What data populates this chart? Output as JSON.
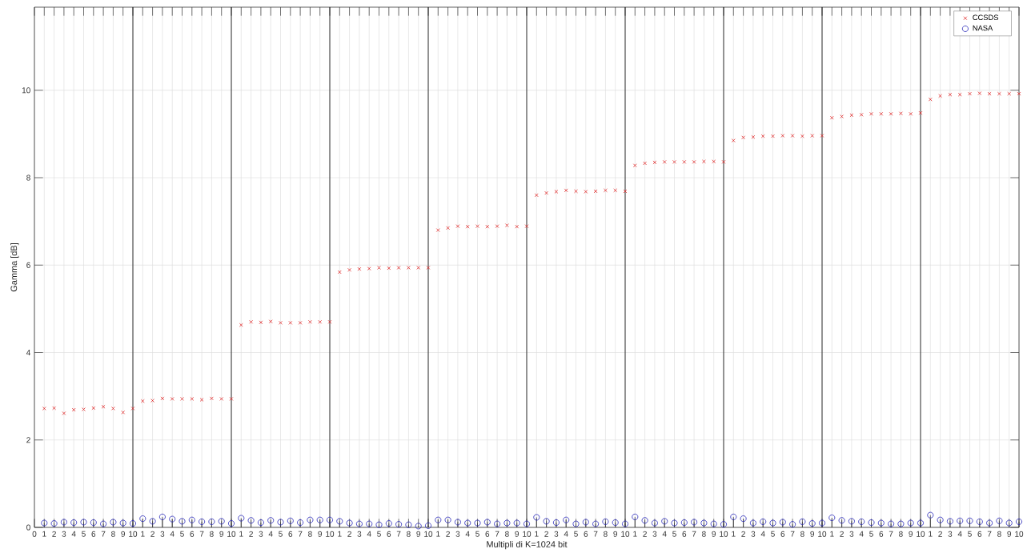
{
  "chart_data": {
    "type": "scatter",
    "xlabel": "Multipli di K=1024 bit",
    "ylabel": "Gamma [dB]",
    "ylim": [
      0,
      11.9
    ],
    "yticks": [
      0,
      2,
      4,
      6,
      8,
      10
    ],
    "grid": true,
    "legend": "top right",
    "categories": [
      "0",
      "1",
      "2",
      "3",
      "4",
      "5",
      "6",
      "7",
      "8",
      "9",
      "10",
      "1",
      "2",
      "3",
      "4",
      "5",
      "6",
      "7",
      "8",
      "9",
      "10",
      "1",
      "2",
      "3",
      "4",
      "5",
      "6",
      "7",
      "8",
      "9",
      "10",
      "1",
      "2",
      "3",
      "4",
      "5",
      "6",
      "7",
      "8",
      "9",
      "10",
      "1",
      "2",
      "3",
      "4",
      "5",
      "6",
      "7",
      "8",
      "9",
      "10",
      "1",
      "2",
      "3",
      "4",
      "5",
      "6",
      "7",
      "8",
      "9",
      "10",
      "1",
      "2",
      "3",
      "4",
      "5",
      "6",
      "7",
      "8",
      "9",
      "10",
      "1",
      "2",
      "3",
      "4",
      "5",
      "6",
      "7",
      "8",
      "9",
      "10",
      "1",
      "2",
      "3",
      "4",
      "5",
      "6",
      "7",
      "8",
      "9",
      "10",
      "1",
      "2",
      "3",
      "4",
      "5",
      "6",
      "7",
      "8",
      "9",
      "10"
    ],
    "series": [
      {
        "name": "CCSDS",
        "marker": "cross",
        "color": "#e02424",
        "values": [
          null,
          2.72,
          2.73,
          2.61,
          2.69,
          2.7,
          2.73,
          2.76,
          2.72,
          2.63,
          2.72,
          2.89,
          2.9,
          2.95,
          2.94,
          2.94,
          2.94,
          2.92,
          2.95,
          2.94,
          2.94,
          4.63,
          4.7,
          4.69,
          4.71,
          4.68,
          4.68,
          4.68,
          4.7,
          4.7,
          4.7,
          5.84,
          5.89,
          5.91,
          5.92,
          5.94,
          5.93,
          5.94,
          5.94,
          5.94,
          5.94,
          6.8,
          6.85,
          6.89,
          6.88,
          6.89,
          6.88,
          6.89,
          6.91,
          6.88,
          6.89,
          7.6,
          7.65,
          7.68,
          7.71,
          7.69,
          7.68,
          7.69,
          7.71,
          7.71,
          7.69,
          8.28,
          8.33,
          8.35,
          8.36,
          8.36,
          8.36,
          8.36,
          8.37,
          8.37,
          8.36,
          8.85,
          8.92,
          8.93,
          8.95,
          8.95,
          8.96,
          8.96,
          8.95,
          8.96,
          8.96,
          9.37,
          9.4,
          9.43,
          9.44,
          9.46,
          9.46,
          9.46,
          9.47,
          9.46,
          9.48,
          9.79,
          9.87,
          9.9,
          9.9,
          9.92,
          9.93,
          9.92,
          9.92,
          9.92,
          9.92
        ]
      },
      {
        "name": "NASA",
        "type": "lollipop",
        "marker": "circle",
        "color": "#2626b8",
        "values": [
          null,
          0.1,
          0.09,
          0.12,
          0.11,
          0.12,
          0.11,
          0.08,
          0.12,
          0.1,
          0.09,
          0.2,
          0.14,
          0.24,
          0.19,
          0.14,
          0.17,
          0.13,
          0.13,
          0.14,
          0.09,
          0.21,
          0.16,
          0.11,
          0.16,
          0.12,
          0.15,
          0.11,
          0.17,
          0.17,
          0.17,
          0.14,
          0.1,
          0.08,
          0.08,
          0.06,
          0.09,
          0.07,
          0.06,
          0.03,
          0.04,
          0.17,
          0.17,
          0.12,
          0.1,
          0.1,
          0.12,
          0.08,
          0.1,
          0.1,
          0.08,
          0.23,
          0.14,
          0.11,
          0.17,
          0.08,
          0.12,
          0.08,
          0.13,
          0.11,
          0.08,
          0.24,
          0.16,
          0.1,
          0.14,
          0.1,
          0.11,
          0.12,
          0.1,
          0.08,
          0.07,
          0.24,
          0.2,
          0.1,
          0.13,
          0.1,
          0.12,
          0.07,
          0.13,
          0.09,
          0.1,
          0.22,
          0.16,
          0.14,
          0.13,
          0.11,
          0.1,
          0.08,
          0.08,
          0.1,
          0.1,
          0.28,
          0.17,
          0.14,
          0.15,
          0.15,
          0.13,
          0.1,
          0.15,
          0.1,
          0.13
        ]
      }
    ]
  }
}
